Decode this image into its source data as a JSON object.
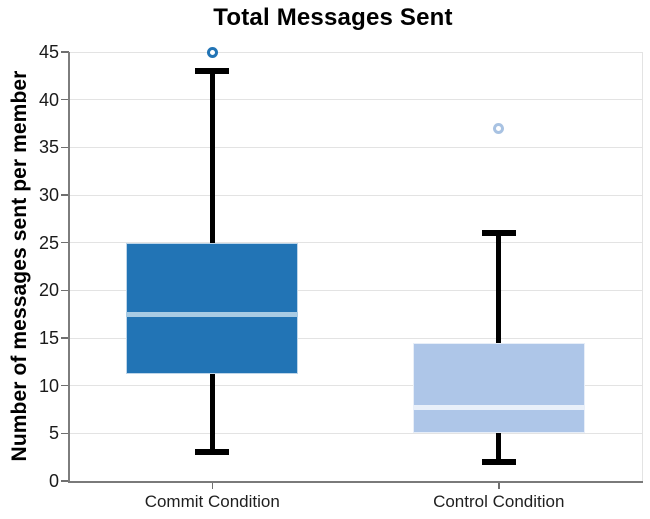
{
  "chart_data": {
    "type": "boxplot",
    "title": "Total Messages Sent",
    "ylabel": "Number of messages sent per member",
    "xlabel": "",
    "categories": [
      "Commit Condition",
      "Control Condition"
    ],
    "ylim": [
      0,
      45
    ],
    "yticks": [
      0,
      5,
      10,
      15,
      20,
      25,
      30,
      35,
      40,
      45
    ],
    "grid": "horizontal",
    "background_color": "#ffffff",
    "gridline_color": "#e3e3e3",
    "whisker_color": "#000000",
    "boxes": [
      {
        "label": "Commit Condition",
        "whisker_low": 3,
        "q1": 11.25,
        "median": 17.5,
        "q3": 25,
        "whisker_high": 43,
        "outliers": [
          45
        ],
        "box_color": "#2274b5",
        "median_color": "#a8cbe4",
        "outlier_color": "#2274b5"
      },
      {
        "label": "Control Condition",
        "whisker_low": 2,
        "q1": 5,
        "median": 7.75,
        "q3": 14.5,
        "whisker_high": 26,
        "outliers": [
          37
        ],
        "box_color": "#aec6e8",
        "median_color": "#e9f0fa",
        "outlier_color": "#a8c2e2"
      }
    ]
  }
}
